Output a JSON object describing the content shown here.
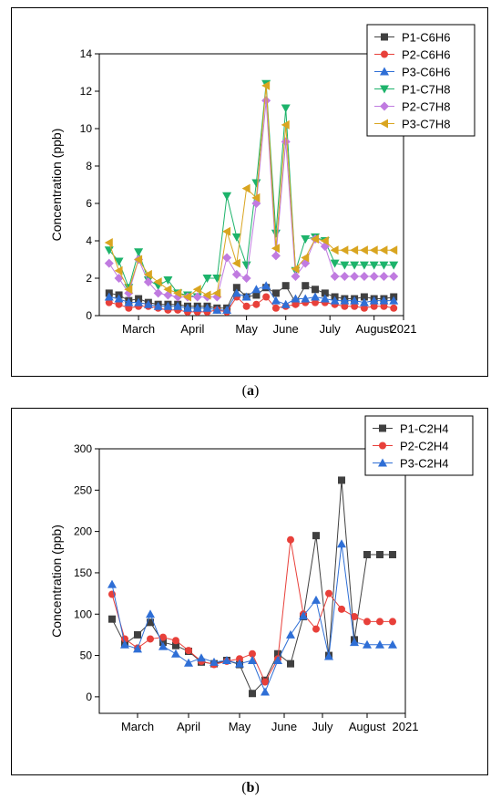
{
  "captions": {
    "a": "a",
    "b": "b"
  },
  "chart_data": [
    {
      "id": "a",
      "type": "line",
      "title": "",
      "ylabel": "Concentration (ppb)",
      "xlabel": "",
      "ylim": [
        0,
        14
      ],
      "yticks": [
        0,
        2,
        4,
        6,
        8,
        10,
        12,
        14
      ],
      "xlim": [
        0,
        31
      ],
      "x_tick_labels": [
        {
          "label": "March",
          "at": 4
        },
        {
          "label": "April",
          "at": 9.5
        },
        {
          "label": "May",
          "at": 15
        },
        {
          "label": "June",
          "at": 19
        },
        {
          "label": "July",
          "at": 23.5
        },
        {
          "label": "August",
          "at": 28
        },
        {
          "label": "2021",
          "at": 31
        }
      ],
      "legend_position": "top-right",
      "series": [
        {
          "name": "P1-C6H6",
          "color": "#404040",
          "marker": "square",
          "x": [
            1,
            2,
            3,
            4,
            5,
            6,
            7,
            8,
            9,
            10,
            11,
            12,
            13,
            14,
            15,
            16,
            17,
            18,
            19,
            20,
            21,
            22,
            23,
            24,
            25,
            26,
            27,
            28,
            29,
            30
          ],
          "y": [
            1.2,
            1.1,
            0.8,
            0.9,
            0.7,
            0.6,
            0.6,
            0.6,
            0.5,
            0.5,
            0.5,
            0.4,
            0.4,
            1.5,
            1.0,
            1.1,
            1.5,
            1.2,
            1.6,
            0.7,
            1.6,
            1.4,
            1.2,
            1.0,
            0.9,
            0.9,
            1.0,
            0.9,
            0.9,
            1.0
          ]
        },
        {
          "name": "P2-C6H6",
          "color": "#e8403a",
          "marker": "circle",
          "x": [
            1,
            2,
            3,
            4,
            5,
            6,
            7,
            8,
            9,
            10,
            11,
            12,
            13,
            14,
            15,
            16,
            17,
            18,
            19,
            20,
            21,
            22,
            23,
            24,
            25,
            26,
            27,
            28,
            29,
            30
          ],
          "y": [
            0.7,
            0.6,
            0.4,
            0.5,
            0.5,
            0.4,
            0.3,
            0.3,
            0.2,
            0.2,
            0.2,
            0.3,
            0.2,
            1.0,
            0.5,
            0.6,
            1.0,
            0.4,
            0.5,
            0.6,
            0.7,
            0.7,
            0.7,
            0.6,
            0.5,
            0.5,
            0.4,
            0.5,
            0.5,
            0.4
          ]
        },
        {
          "name": "P3-C6H6",
          "color": "#2f6fd6",
          "marker": "triangle-up",
          "x": [
            1,
            2,
            3,
            4,
            5,
            6,
            7,
            8,
            9,
            10,
            11,
            12,
            13,
            14,
            15,
            16,
            17,
            18,
            19,
            20,
            21,
            22,
            23,
            24,
            25,
            26,
            27,
            28,
            29,
            30
          ],
          "y": [
            1.0,
            0.9,
            0.7,
            0.7,
            0.6,
            0.5,
            0.5,
            0.5,
            0.4,
            0.4,
            0.4,
            0.3,
            0.3,
            1.2,
            1.0,
            1.4,
            1.6,
            0.8,
            0.6,
            0.9,
            0.9,
            1.0,
            0.9,
            0.8,
            0.8,
            0.8,
            0.7,
            0.8,
            0.8,
            0.8
          ]
        },
        {
          "name": "P1-C7H8",
          "color": "#1db36b",
          "marker": "triangle-down",
          "x": [
            1,
            2,
            3,
            4,
            5,
            6,
            7,
            8,
            9,
            10,
            11,
            12,
            13,
            14,
            15,
            16,
            17,
            18,
            19,
            20,
            21,
            22,
            23,
            24,
            25,
            26,
            27,
            28,
            29,
            30
          ],
          "y": [
            3.5,
            2.9,
            1.5,
            3.4,
            1.9,
            1.6,
            1.9,
            1.2,
            1.1,
            1.0,
            2.0,
            2.0,
            6.4,
            4.2,
            2.7,
            7.1,
            12.4,
            4.4,
            11.1,
            2.4,
            4.1,
            4.2,
            4.0,
            2.8,
            2.7,
            2.7,
            2.7,
            2.7,
            2.7,
            2.7
          ]
        },
        {
          "name": "P2-C7H8",
          "color": "#c07be0",
          "marker": "diamond",
          "x": [
            1,
            2,
            3,
            4,
            5,
            6,
            7,
            8,
            9,
            10,
            11,
            12,
            13,
            14,
            15,
            16,
            17,
            18,
            19,
            20,
            21,
            22,
            23,
            24,
            25,
            26,
            27,
            28,
            29,
            30
          ],
          "y": [
            2.8,
            2.0,
            1.2,
            3.0,
            1.8,
            1.2,
            1.1,
            1.0,
            1.0,
            1.0,
            1.0,
            1.0,
            3.1,
            2.2,
            2.0,
            6.0,
            11.5,
            3.2,
            9.3,
            2.1,
            2.8,
            4.1,
            3.7,
            2.1,
            2.1,
            2.1,
            2.1,
            2.1,
            2.1,
            2.1
          ]
        },
        {
          "name": "P3-C7H8",
          "color": "#d9a520",
          "marker": "triangle-left",
          "x": [
            1,
            2,
            3,
            4,
            5,
            6,
            7,
            8,
            9,
            10,
            11,
            12,
            13,
            14,
            15,
            16,
            17,
            18,
            19,
            20,
            21,
            22,
            23,
            24,
            25,
            26,
            27,
            28,
            29,
            30
          ],
          "y": [
            3.9,
            2.4,
            1.4,
            3.0,
            2.2,
            1.8,
            1.4,
            1.2,
            1.0,
            1.4,
            1.1,
            1.2,
            4.5,
            2.8,
            6.8,
            6.3,
            12.3,
            3.6,
            10.2,
            2.5,
            3.1,
            4.1,
            4.0,
            3.5,
            3.5,
            3.5,
            3.5,
            3.5,
            3.5,
            3.5
          ]
        }
      ]
    },
    {
      "id": "b",
      "type": "line",
      "title": "",
      "ylabel": "Concentration (ppb)",
      "xlabel": "",
      "ylim": [
        -20,
        300
      ],
      "yticks": [
        0,
        50,
        100,
        150,
        200,
        250,
        300
      ],
      "xlim": [
        0,
        24
      ],
      "x_tick_labels": [
        {
          "label": "March",
          "at": 3
        },
        {
          "label": "April",
          "at": 7
        },
        {
          "label": "May",
          "at": 11
        },
        {
          "label": "June",
          "at": 14.5
        },
        {
          "label": "July",
          "at": 17.5
        },
        {
          "label": "August",
          "at": 21
        },
        {
          "label": "2021",
          "at": 24
        }
      ],
      "legend_position": "top-right",
      "series": [
        {
          "name": "P1-C2H4",
          "color": "#404040",
          "marker": "square",
          "x": [
            1,
            2,
            3,
            4,
            5,
            6,
            7,
            8,
            9,
            10,
            11,
            12,
            13,
            14,
            15,
            16,
            17,
            18,
            19,
            20,
            21,
            22,
            23
          ],
          "y": [
            94,
            64,
            75,
            90,
            66,
            62,
            55,
            42,
            40,
            44,
            39,
            4,
            20,
            52,
            40,
            97,
            195,
            50,
            262,
            69,
            172,
            172,
            172
          ]
        },
        {
          "name": "P2-C2H4",
          "color": "#e8403a",
          "marker": "circle",
          "x": [
            1,
            2,
            3,
            4,
            5,
            6,
            7,
            8,
            9,
            10,
            11,
            12,
            13,
            14,
            15,
            16,
            17,
            18,
            19,
            20,
            21,
            22,
            23
          ],
          "y": [
            124,
            70,
            59,
            70,
            72,
            68,
            56,
            43,
            39,
            43,
            46,
            52,
            18,
            46,
            190,
            100,
            82,
            125,
            106,
            97,
            91,
            91,
            91
          ]
        },
        {
          "name": "P3-C2H4",
          "color": "#2f6fd6",
          "marker": "triangle-up",
          "x": [
            1,
            2,
            3,
            4,
            5,
            6,
            7,
            8,
            9,
            10,
            11,
            12,
            13,
            14,
            15,
            16,
            17,
            18,
            19,
            20,
            21,
            22,
            23
          ],
          "y": [
            136,
            63,
            58,
            100,
            61,
            52,
            41,
            47,
            42,
            44,
            40,
            44,
            6,
            44,
            75,
            98,
            117,
            49,
            185,
            66,
            63,
            63,
            63
          ]
        }
      ]
    }
  ]
}
